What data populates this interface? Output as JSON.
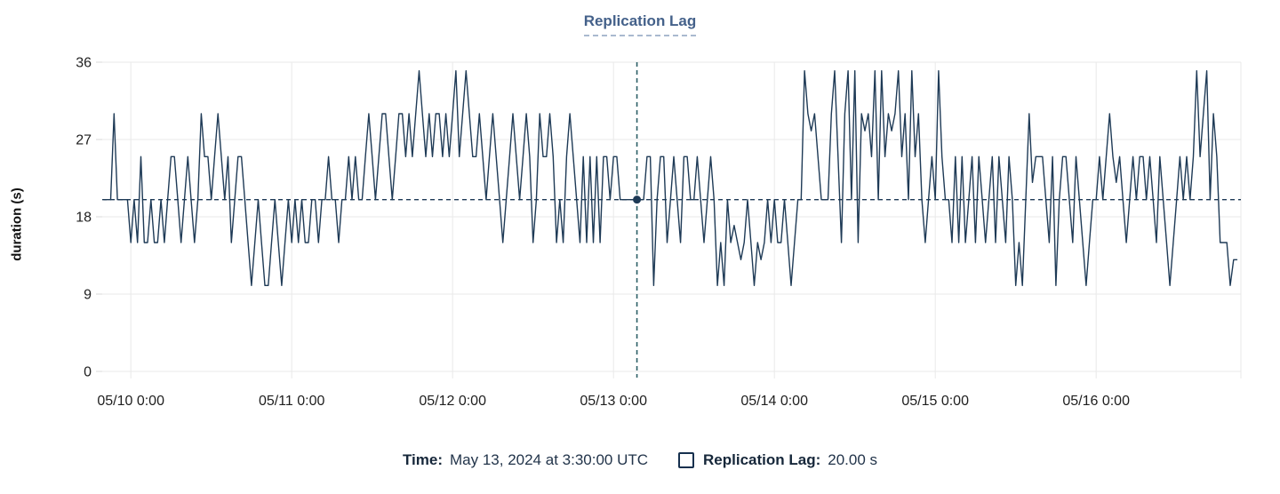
{
  "chart": {
    "title": "Replication Lag",
    "ylabel": "duration (s)",
    "footer": {
      "time_label": "Time:",
      "time_value": "May 13, 2024 at 3:30:00 UTC",
      "series_label": "Replication Lag:",
      "series_value": "20.00 s"
    }
  },
  "colors": {
    "line": "#1e3a56",
    "title": "#44618a",
    "grid": "#e9e9e9",
    "tick": "#d8d8d8",
    "axis_text": "#1f1f1f",
    "crosshair_vertical": "#2c5f66",
    "crosshair_horizontal": "#1e3a56"
  },
  "chart_data": {
    "type": "line",
    "title": "Replication Lag",
    "xlabel": "",
    "ylabel": "duration (s)",
    "unit": "s",
    "ylim": [
      0,
      36
    ],
    "yticks": [
      0,
      9,
      18,
      27,
      36
    ],
    "x_tick_labels": [
      "05/10 0:00",
      "05/11 0:00",
      "05/12 0:00",
      "05/13 0:00",
      "05/14 0:00",
      "05/15 0:00",
      "05/16 0:00"
    ],
    "x_start": "05/09 20:00",
    "x_step_minutes": 30,
    "grid": true,
    "legend_position": "bottom",
    "crosshair": {
      "time": "May 13, 2024 at 3:30:00 UTC",
      "hours_from_start": 79.5,
      "value": 20.0
    },
    "series": [
      {
        "name": "Replication Lag",
        "values": [
          20,
          20,
          20,
          30,
          20,
          20,
          20,
          20,
          15,
          20,
          15,
          25,
          15,
          15,
          20,
          15,
          15,
          20,
          15,
          20,
          25,
          25,
          20,
          15,
          20,
          25,
          20,
          15,
          20,
          30,
          25,
          25,
          20,
          25,
          30,
          25,
          20,
          25,
          15,
          20,
          25,
          25,
          20,
          15,
          10,
          15,
          20,
          15,
          10,
          10,
          15,
          20,
          15,
          10,
          15,
          20,
          15,
          20,
          15,
          20,
          15,
          15,
          20,
          20,
          15,
          20,
          20,
          25,
          20,
          20,
          15,
          20,
          20,
          25,
          20,
          25,
          20,
          20,
          25,
          30,
          25,
          20,
          25,
          30,
          30,
          25,
          20,
          25,
          30,
          30,
          25,
          30,
          25,
          30,
          35,
          30,
          25,
          30,
          25,
          30,
          30,
          25,
          30,
          25,
          30,
          35,
          25,
          30,
          35,
          30,
          25,
          25,
          30,
          25,
          20,
          25,
          30,
          25,
          20,
          15,
          20,
          25,
          30,
          25,
          20,
          25,
          30,
          25,
          15,
          20,
          30,
          25,
          25,
          30,
          25,
          15,
          20,
          15,
          25,
          30,
          25,
          20,
          15,
          25,
          15,
          25,
          15,
          25,
          15,
          25,
          25,
          20,
          25,
          25,
          20,
          20,
          20,
          20,
          20,
          20,
          20,
          20,
          25,
          25,
          10,
          20,
          25,
          25,
          15,
          20,
          25,
          20,
          15,
          25,
          25,
          20,
          20,
          25,
          20,
          15,
          20,
          25,
          20,
          10,
          15,
          10,
          20,
          15,
          17,
          15,
          13,
          15,
          20,
          15,
          10,
          15,
          13,
          15,
          20,
          15,
          20,
          15,
          15,
          20,
          15,
          10,
          15,
          20,
          20,
          35,
          30,
          28,
          30,
          25,
          20,
          20,
          20,
          30,
          35,
          25,
          15,
          30,
          35,
          20,
          35,
          15,
          30,
          28,
          30,
          25,
          35,
          20,
          35,
          25,
          30,
          28,
          30,
          35,
          25,
          30,
          20,
          35,
          25,
          30,
          20,
          15,
          20,
          25,
          20,
          35,
          25,
          20,
          20,
          15,
          25,
          15,
          25,
          15,
          20,
          25,
          15,
          25,
          20,
          15,
          20,
          25,
          15,
          25,
          20,
          15,
          25,
          20,
          10,
          15,
          10,
          20,
          30,
          22,
          25,
          25,
          25,
          20,
          15,
          25,
          10,
          20,
          25,
          25,
          20,
          15,
          25,
          20,
          15,
          10,
          15,
          20,
          20,
          25,
          20,
          25,
          30,
          25,
          22,
          25,
          20,
          15,
          20,
          25,
          20,
          25,
          25,
          20,
          25,
          20,
          15,
          25,
          20,
          15,
          10,
          15,
          20,
          25,
          20,
          25,
          20,
          25,
          35,
          25,
          30,
          35,
          20,
          30,
          25,
          15,
          15,
          15,
          10,
          13,
          13
        ]
      }
    ]
  }
}
